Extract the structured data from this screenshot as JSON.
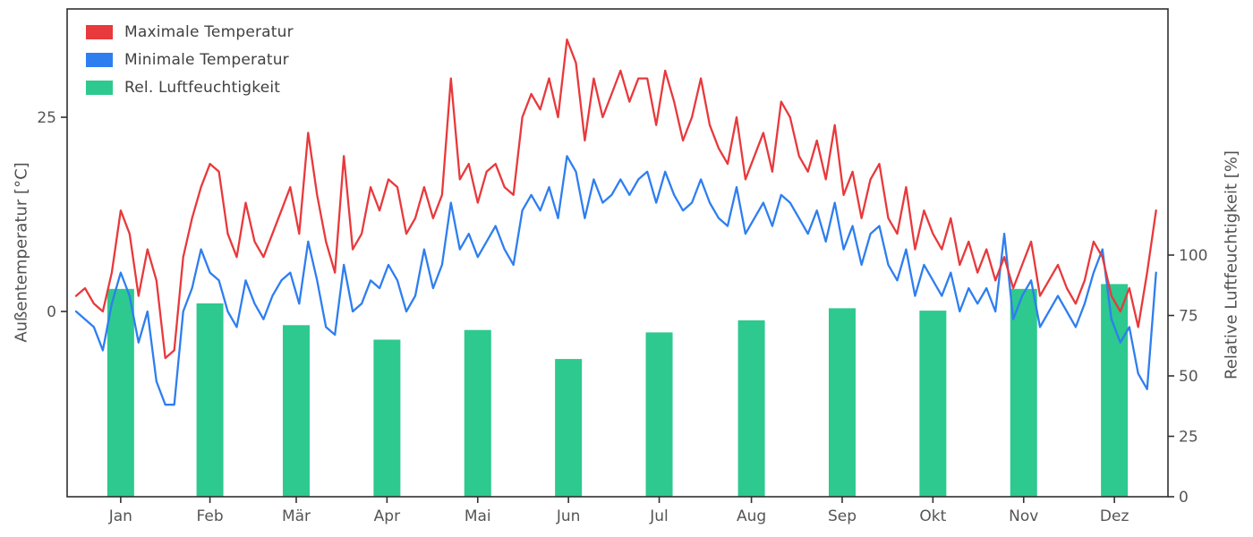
{
  "chart_data": {
    "type": "line+bar",
    "title": "",
    "x_tick_labels": [
      "Jan",
      "Feb",
      "Mär",
      "Apr",
      "Mai",
      "Jun",
      "Jul",
      "Aug",
      "Sep",
      "Okt",
      "Nov",
      "Dez"
    ],
    "left_axis": {
      "label": "Außentemperatur [°C]",
      "ticks": [
        0,
        25
      ],
      "range": [
        -24,
        39
      ]
    },
    "right_axis": {
      "label": "Relative Luftfeuchtigkeit [%]",
      "ticks": [
        0,
        25,
        50,
        75,
        100
      ],
      "range": [
        0,
        202
      ]
    },
    "legend_position": "upper-left",
    "colors": {
      "max_temp": "#e8393c",
      "min_temp": "#2e7ef0",
      "humidity": "#2dc98e",
      "spine": "#303030",
      "tick_text": "#555555"
    },
    "x_step_days": 3,
    "series": [
      {
        "name": "Maximale Temperatur",
        "type": "line",
        "axis": "left",
        "color": "#e8393c",
        "values": [
          2,
          3,
          1,
          0,
          5,
          13,
          10,
          2,
          8,
          4,
          -6,
          -5,
          7,
          12,
          16,
          19,
          18,
          10,
          7,
          14,
          9,
          7,
          10,
          13,
          16,
          10,
          23,
          15,
          9,
          5,
          20,
          8,
          10,
          16,
          13,
          17,
          16,
          10,
          12,
          16,
          12,
          15,
          30,
          17,
          19,
          14,
          18,
          19,
          16,
          15,
          25,
          28,
          26,
          30,
          25,
          35,
          32,
          22,
          30,
          25,
          28,
          31,
          27,
          30,
          30,
          24,
          31,
          27,
          22,
          25,
          30,
          24,
          21,
          19,
          25,
          17,
          20,
          23,
          18,
          27,
          25,
          20,
          18,
          22,
          17,
          24,
          15,
          18,
          12,
          17,
          19,
          12,
          10,
          16,
          8,
          13,
          10,
          8,
          12,
          6,
          9,
          5,
          8,
          4,
          7,
          3,
          6,
          9,
          2,
          4,
          6,
          3,
          1,
          4,
          9,
          7,
          2,
          0,
          3,
          -2,
          5,
          13
        ]
      },
      {
        "name": "Minimale Temperatur",
        "type": "line",
        "axis": "left",
        "color": "#2e7ef0",
        "values": [
          0,
          -1,
          -2,
          -5,
          1,
          5,
          2,
          -4,
          0,
          -9,
          -12,
          -12,
          0,
          3,
          8,
          5,
          4,
          0,
          -2,
          4,
          1,
          -1,
          2,
          4,
          5,
          1,
          9,
          4,
          -2,
          -3,
          6,
          0,
          1,
          4,
          3,
          6,
          4,
          0,
          2,
          8,
          3,
          6,
          14,
          8,
          10,
          7,
          9,
          11,
          8,
          6,
          13,
          15,
          13,
          16,
          12,
          20,
          18,
          12,
          17,
          14,
          15,
          17,
          15,
          17,
          18,
          14,
          18,
          15,
          13,
          14,
          17,
          14,
          12,
          11,
          16,
          10,
          12,
          14,
          11,
          15,
          14,
          12,
          10,
          13,
          9,
          14,
          8,
          11,
          6,
          10,
          11,
          6,
          4,
          8,
          2,
          6,
          4,
          2,
          5,
          0,
          3,
          1,
          3,
          0,
          10,
          -1,
          2,
          4,
          -2,
          0,
          2,
          0,
          -2,
          1,
          5,
          8,
          -1,
          -4,
          -2,
          -8,
          -10,
          5
        ]
      },
      {
        "name": "Rel. Luftfeuchtigkeit",
        "type": "bar",
        "axis": "right",
        "color": "#2dc98e",
        "categories": [
          "Jan",
          "Feb",
          "Mär",
          "Apr",
          "Mai",
          "Jun",
          "Jul",
          "Aug",
          "Sep",
          "Okt",
          "Nov",
          "Dez"
        ],
        "values": [
          86,
          80,
          71,
          65,
          69,
          57,
          68,
          73,
          78,
          77,
          86,
          88
        ]
      }
    ]
  }
}
